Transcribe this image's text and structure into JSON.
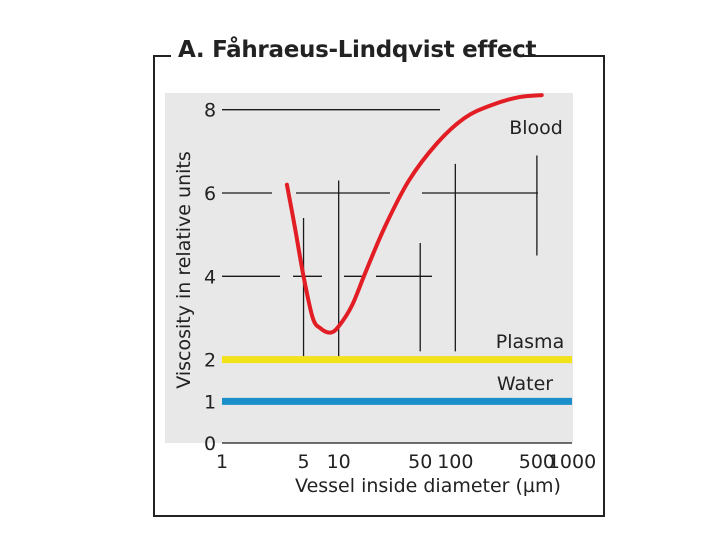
{
  "chart_data": {
    "type": "line",
    "title": "A. Fåhraeus-Lindqvist effect",
    "xlabel": "Vessel inside diameter (µm)",
    "ylabel": "Viscosity in relative units",
    "x_scale": "log",
    "xlim": [
      1,
      1000
    ],
    "ylim": [
      0,
      8.4
    ],
    "x_tick_labels": [
      "1",
      "5",
      "10",
      "50",
      "100",
      "500",
      "1000"
    ],
    "y_tick_labels": [
      "0",
      "1",
      "2",
      "4",
      "6",
      "8"
    ],
    "series": [
      {
        "name": "Blood",
        "color": "#e21d24",
        "x": [
          3.6,
          4.2,
          5.0,
          6.0,
          7.0,
          8.5,
          10.0,
          13,
          17,
          25,
          40,
          70,
          120,
          200,
          350,
          550
        ],
        "y": [
          6.2,
          5.2,
          4.0,
          3.0,
          2.75,
          2.65,
          2.8,
          3.3,
          4.1,
          5.2,
          6.3,
          7.2,
          7.8,
          8.1,
          8.3,
          8.35
        ]
      },
      {
        "name": "Plasma",
        "color": "#f2e21a",
        "x": [
          1,
          1000
        ],
        "y": [
          2.0,
          2.0
        ]
      },
      {
        "name": "Water",
        "color": "#1b8fc9",
        "x": [
          1,
          1000
        ],
        "y": [
          1.0,
          1.0
        ]
      }
    ]
  }
}
